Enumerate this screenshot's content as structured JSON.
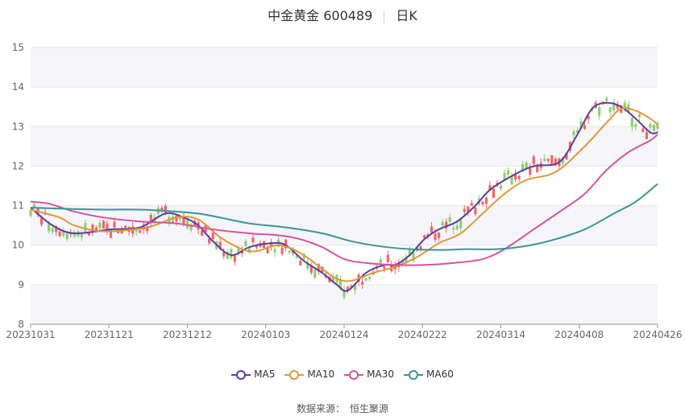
{
  "title": {
    "stock": "中金黄金 600489",
    "period": "日K"
  },
  "source": {
    "label": "数据来源：",
    "name": "恒生聚源"
  },
  "colors": {
    "up": "#ee6666",
    "down": "#91cc75",
    "grid": "#e6e6e6",
    "band": "#f5f5fa"
  },
  "chart_data": {
    "type": "line",
    "candlestick": true,
    "ylim": [
      8,
      15
    ],
    "y_ticks": [
      "8",
      "9",
      "10",
      "11",
      "12",
      "13",
      "14",
      "15"
    ],
    "x_tick_labels": [
      "20231031",
      "20231121",
      "20231212",
      "20240103",
      "20240124",
      "20240222",
      "20240314",
      "20240408",
      "20240426"
    ],
    "grid": true,
    "legend_position": "bottom",
    "legend": [
      "MA5",
      "MA10",
      "MA30",
      "MA60"
    ],
    "series": [
      {
        "name": "MA5",
        "color": "#5b3f9e",
        "values": [
          [
            0,
            10.95
          ],
          [
            6,
            10.5
          ],
          [
            12,
            10.3
          ],
          [
            22,
            10.4
          ],
          [
            30,
            10.45
          ],
          [
            37,
            10.8
          ],
          [
            42,
            10.7
          ],
          [
            46,
            10.5
          ],
          [
            50,
            10.1
          ],
          [
            55,
            9.75
          ],
          [
            60,
            9.95
          ],
          [
            66,
            10.05
          ],
          [
            70,
            10.0
          ],
          [
            75,
            9.6
          ],
          [
            80,
            9.3
          ],
          [
            84,
            9.0
          ],
          [
            87,
            8.85
          ],
          [
            92,
            9.3
          ],
          [
            97,
            9.5
          ],
          [
            100,
            9.5
          ],
          [
            104,
            9.75
          ],
          [
            108,
            10.15
          ],
          [
            112,
            10.4
          ],
          [
            117,
            10.6
          ],
          [
            122,
            11.0
          ],
          [
            126,
            11.4
          ],
          [
            132,
            11.75
          ],
          [
            138,
            12.0
          ],
          [
            145,
            12.1
          ],
          [
            150,
            12.8
          ],
          [
            154,
            13.45
          ],
          [
            158,
            13.6
          ],
          [
            162,
            13.5
          ],
          [
            166,
            13.2
          ],
          [
            170,
            12.85
          ],
          [
            172,
            12.85
          ]
        ]
      },
      {
        "name": "MA10",
        "color": "#e0983a",
        "values": [
          [
            0,
            10.9
          ],
          [
            8,
            10.7
          ],
          [
            12,
            10.5
          ],
          [
            20,
            10.35
          ],
          [
            32,
            10.45
          ],
          [
            40,
            10.7
          ],
          [
            46,
            10.65
          ],
          [
            52,
            10.2
          ],
          [
            58,
            9.9
          ],
          [
            62,
            9.85
          ],
          [
            68,
            10.0
          ],
          [
            74,
            9.8
          ],
          [
            80,
            9.4
          ],
          [
            84,
            9.15
          ],
          [
            88,
            9.1
          ],
          [
            94,
            9.3
          ],
          [
            100,
            9.45
          ],
          [
            106,
            9.7
          ],
          [
            112,
            10.05
          ],
          [
            118,
            10.3
          ],
          [
            124,
            10.8
          ],
          [
            130,
            11.3
          ],
          [
            136,
            11.65
          ],
          [
            144,
            11.85
          ],
          [
            152,
            12.5
          ],
          [
            158,
            13.1
          ],
          [
            162,
            13.45
          ],
          [
            166,
            13.4
          ],
          [
            170,
            13.2
          ],
          [
            172,
            13.05
          ]
        ]
      },
      {
        "name": "MA30",
        "color": "#d8529e",
        "values": [
          [
            0,
            11.1
          ],
          [
            5,
            11.05
          ],
          [
            12,
            10.85
          ],
          [
            20,
            10.7
          ],
          [
            30,
            10.6
          ],
          [
            40,
            10.55
          ],
          [
            50,
            10.4
          ],
          [
            60,
            10.3
          ],
          [
            68,
            10.25
          ],
          [
            74,
            10.15
          ],
          [
            80,
            9.95
          ],
          [
            86,
            9.65
          ],
          [
            92,
            9.55
          ],
          [
            100,
            9.5
          ],
          [
            108,
            9.5
          ],
          [
            116,
            9.55
          ],
          [
            124,
            9.65
          ],
          [
            130,
            9.9
          ],
          [
            138,
            10.4
          ],
          [
            146,
            10.9
          ],
          [
            152,
            11.3
          ],
          [
            158,
            11.9
          ],
          [
            164,
            12.35
          ],
          [
            170,
            12.65
          ],
          [
            172,
            12.8
          ]
        ]
      },
      {
        "name": "MA60",
        "color": "#3a9494",
        "values": [
          [
            0,
            10.95
          ],
          [
            10,
            10.92
          ],
          [
            20,
            10.9
          ],
          [
            30,
            10.9
          ],
          [
            40,
            10.85
          ],
          [
            46,
            10.8
          ],
          [
            52,
            10.7
          ],
          [
            60,
            10.55
          ],
          [
            70,
            10.45
          ],
          [
            80,
            10.3
          ],
          [
            88,
            10.1
          ],
          [
            96,
            9.97
          ],
          [
            104,
            9.9
          ],
          [
            112,
            9.88
          ],
          [
            120,
            9.9
          ],
          [
            128,
            9.9
          ],
          [
            136,
            9.98
          ],
          [
            144,
            10.15
          ],
          [
            152,
            10.4
          ],
          [
            160,
            10.8
          ],
          [
            166,
            11.1
          ],
          [
            172,
            11.55
          ]
        ]
      }
    ]
  }
}
